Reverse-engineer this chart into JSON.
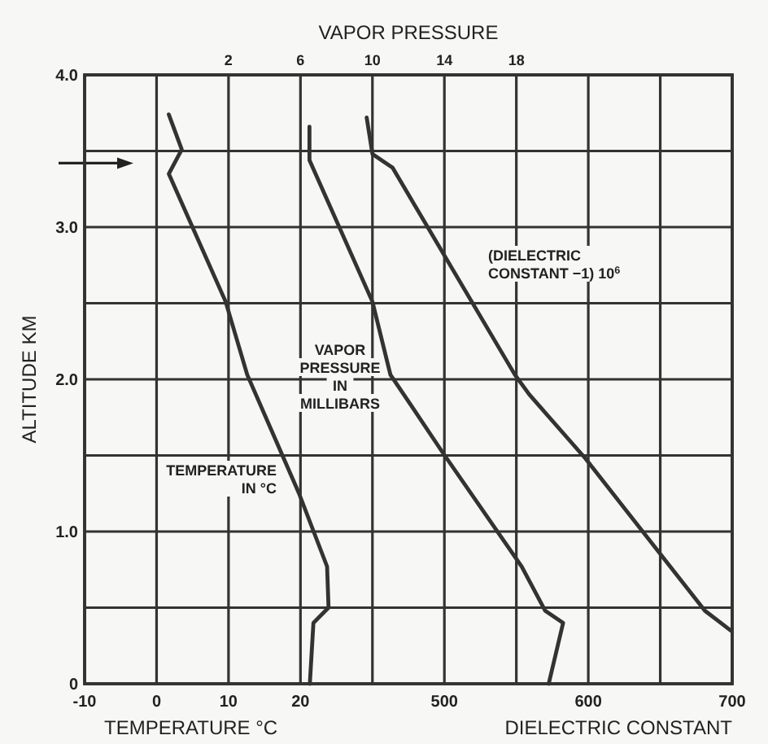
{
  "chart_data": [
    {
      "type": "line",
      "xlabel": "TEMPERATURE °C",
      "x2label": "VAPOR PRESSURE",
      "ylabel": "ALTITUDE KM",
      "xlim": [
        -10,
        80
      ],
      "xticks": [
        -10,
        0,
        10,
        20,
        {
          "value": 30,
          "label": null
        },
        {
          "value": 40,
          "label": null
        },
        {
          "value": 50,
          "label": null
        },
        {
          "value": 60,
          "label": null
        },
        {
          "value": 70,
          "label": null
        },
        {
          "value": 80,
          "label": null
        }
      ],
      "x2lim": [
        -6,
        30
      ],
      "x2ticks": [
        2,
        6,
        10,
        14,
        18
      ],
      "ylim": [
        0,
        4
      ],
      "yticks": [
        {
          "value": 0,
          "label": "0"
        },
        {
          "value": 0.5,
          "label": null
        },
        {
          "value": 1,
          "label": "1.0"
        },
        {
          "value": 1.5,
          "label": null
        },
        {
          "value": 2,
          "label": "2.0"
        },
        {
          "value": 2.5,
          "label": null
        },
        {
          "value": 3,
          "label": "3.0"
        },
        {
          "value": 3.5,
          "label": null
        },
        {
          "value": 4,
          "label": "4.0"
        }
      ],
      "grid": true,
      "marker": "none",
      "line_style": "solid",
      "series": [
        {
          "name": "TEMPERATURE\nIN °C",
          "color": "#333333",
          "x": [
            1.7,
            3.5,
            1.7,
            9.6,
            12.6,
            19.8,
            23.7,
            23.9,
            21.8,
            21.3
          ],
          "values": [
            3.74,
            3.51,
            3.35,
            2.51,
            2.03,
            1.25,
            0.77,
            0.5,
            0.4,
            0
          ]
        },
        {
          "name": "VAPOR\nPRESSURE\nIN\nMILLIBARS",
          "color": "#333333",
          "axis": "x2",
          "x": [
            6.5,
            6.5,
            10,
            11,
            12.2,
            13.9,
            18.3,
            19.6,
            20.6,
            19.8
          ],
          "values": [
            3.66,
            3.44,
            2.51,
            2.03,
            1.82,
            1.52,
            0.77,
            0.48,
            0.4,
            0
          ]
        }
      ]
    },
    {
      "type": "line",
      "xlabel": "DIELECTRIC CONSTANT",
      "xlim": [
        250,
        700
      ],
      "xticks": [
        500,
        600,
        700
      ],
      "ylim": [
        0,
        4
      ],
      "tick_labels": "x",
      "marker": "none",
      "line_style": "solid",
      "series": [
        {
          "name": "(DIELECTRIC\nCONSTANT −1) 10$^{6}$",
          "color": "#333333",
          "x": [
            446,
            450,
            464,
            549,
            559,
            598,
            681,
            699
          ],
          "values": [
            3.72,
            3.48,
            3.39,
            2.03,
            1.9,
            1.48,
            0.48,
            0.35
          ]
        }
      ]
    }
  ]
}
